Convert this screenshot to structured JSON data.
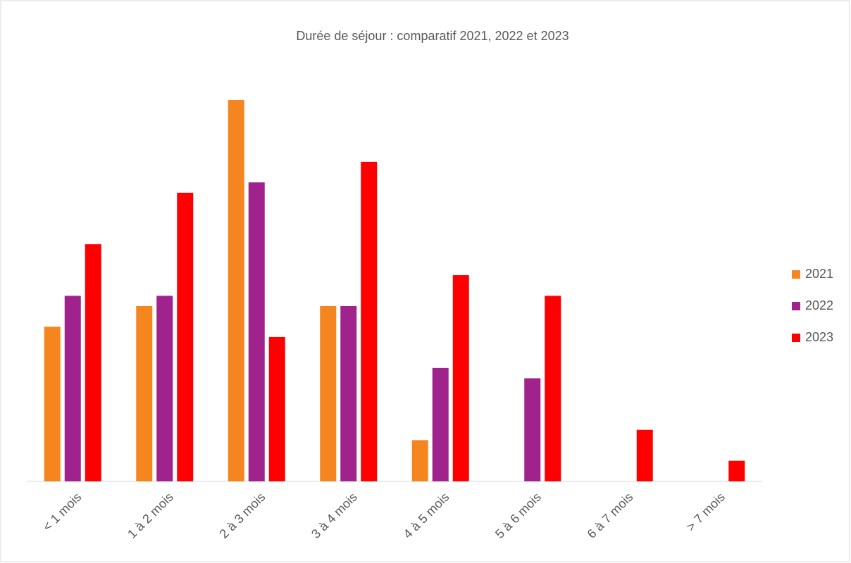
{
  "chart_data": {
    "type": "bar",
    "title": "Durée de séjour : comparatif 2021, 2022 et 2023",
    "categories": [
      "< 1 mois",
      "1 à 2 mois",
      "2 à 3 mois",
      "3 à 4 mois",
      "4 à 5 mois",
      "5 à 6 mois",
      "6 à 7 mois",
      "> 7 mois"
    ],
    "series": [
      {
        "name": "2021",
        "color": "#f5851f",
        "values": [
          15,
          17,
          37,
          17,
          4,
          0,
          0,
          0
        ]
      },
      {
        "name": "2022",
        "color": "#a0228c",
        "values": [
          18,
          18,
          29,
          17,
          11,
          10,
          0,
          0
        ]
      },
      {
        "name": "2023",
        "color": "#ff0000",
        "values": [
          23,
          28,
          14,
          31,
          20,
          18,
          5,
          2
        ]
      }
    ],
    "legend": "right"
  }
}
